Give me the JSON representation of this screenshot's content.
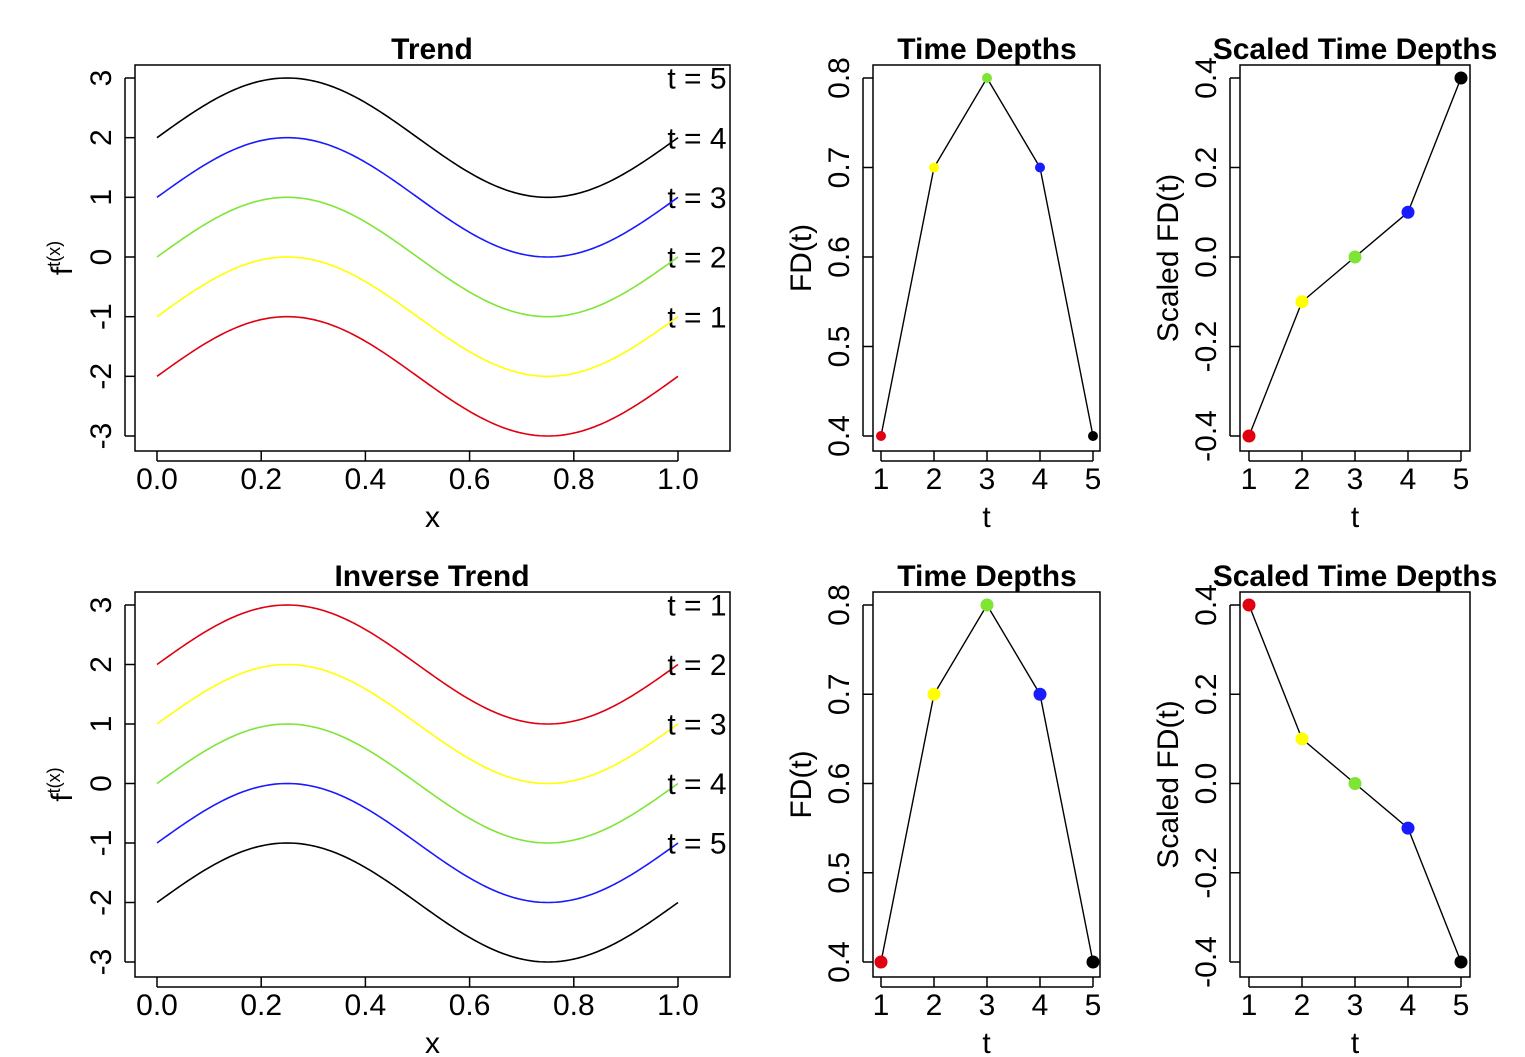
{
  "colors": {
    "red": "#e0000f",
    "yellow": "#ffff00",
    "green": "#7fe534",
    "blue": "#1a1aff",
    "black": "#000000"
  },
  "chart_data": [
    {
      "type": "line",
      "title": "Trend",
      "xlabel": "x",
      "ylabel": "f_t(x)",
      "xlim": [
        0,
        1
      ],
      "ylim": [
        -3,
        3
      ],
      "xticks": [
        "0.0",
        "0.2",
        "0.4",
        "0.6",
        "0.8",
        "1.0"
      ],
      "yticks": [
        "-3",
        "-2",
        "-1",
        "0",
        "1",
        "2",
        "3"
      ],
      "function": "t - 3 + sin(2*pi*x)",
      "series": [
        {
          "name": "t = 1",
          "t": 1,
          "offset": -2,
          "color": "red"
        },
        {
          "name": "t = 2",
          "t": 2,
          "offset": -1,
          "color": "yellow"
        },
        {
          "name": "t = 3",
          "t": 3,
          "offset": 0,
          "color": "green"
        },
        {
          "name": "t = 4",
          "t": 4,
          "offset": 1,
          "color": "blue"
        },
        {
          "name": "t = 5",
          "t": 5,
          "offset": 2,
          "color": "black"
        }
      ]
    },
    {
      "type": "line",
      "title": "Time Depths",
      "xlabel": "t",
      "ylabel": "FD(t)",
      "xlim": [
        1,
        5
      ],
      "ylim": [
        0.4,
        0.8
      ],
      "xticks": [
        "1",
        "2",
        "3",
        "4",
        "5"
      ],
      "yticks": [
        "0.4",
        "0.5",
        "0.6",
        "0.7",
        "0.8"
      ],
      "x": [
        1,
        2,
        3,
        4,
        5
      ],
      "values": [
        0.4,
        0.7,
        0.8,
        0.7,
        0.4
      ],
      "point_colors": [
        "red",
        "yellow",
        "green",
        "blue",
        "black"
      ],
      "point_size": "small"
    },
    {
      "type": "line",
      "title": "Scaled Time Depths",
      "xlabel": "t",
      "ylabel": "Scaled FD(t)",
      "xlim": [
        1,
        5
      ],
      "ylim": [
        -0.4,
        0.4
      ],
      "xticks": [
        "1",
        "2",
        "3",
        "4",
        "5"
      ],
      "yticks": [
        "-0.4",
        "-0.2",
        "0.0",
        "0.2",
        "0.4"
      ],
      "x": [
        1,
        2,
        3,
        4,
        5
      ],
      "values": [
        -0.4,
        -0.1,
        0.0,
        0.1,
        0.4
      ],
      "point_colors": [
        "red",
        "yellow",
        "green",
        "blue",
        "black"
      ],
      "point_size": "large"
    },
    {
      "type": "line",
      "title": "Inverse Trend",
      "xlabel": "x",
      "ylabel": "f_t(x)",
      "xlim": [
        0,
        1
      ],
      "ylim": [
        -3,
        3
      ],
      "xticks": [
        "0.0",
        "0.2",
        "0.4",
        "0.6",
        "0.8",
        "1.0"
      ],
      "yticks": [
        "-3",
        "-2",
        "-1",
        "0",
        "1",
        "2",
        "3"
      ],
      "function": "3 - t + sin(2*pi*x)",
      "series": [
        {
          "name": "t = 1",
          "t": 1,
          "offset": 2,
          "color": "red"
        },
        {
          "name": "t = 2",
          "t": 2,
          "offset": 1,
          "color": "yellow"
        },
        {
          "name": "t = 3",
          "t": 3,
          "offset": 0,
          "color": "green"
        },
        {
          "name": "t = 4",
          "t": 4,
          "offset": -1,
          "color": "blue"
        },
        {
          "name": "t = 5",
          "t": 5,
          "offset": -2,
          "color": "black"
        }
      ]
    },
    {
      "type": "line",
      "title": "Time Depths",
      "xlabel": "t",
      "ylabel": "FD(t)",
      "xlim": [
        1,
        5
      ],
      "ylim": [
        0.4,
        0.8
      ],
      "xticks": [
        "1",
        "2",
        "3",
        "4",
        "5"
      ],
      "yticks": [
        "0.4",
        "0.5",
        "0.6",
        "0.7",
        "0.8"
      ],
      "x": [
        1,
        2,
        3,
        4,
        5
      ],
      "values": [
        0.4,
        0.7,
        0.8,
        0.7,
        0.4
      ],
      "point_colors": [
        "red",
        "yellow",
        "green",
        "blue",
        "black"
      ],
      "point_size": "large"
    },
    {
      "type": "line",
      "title": "Scaled Time Depths",
      "xlabel": "t",
      "ylabel": "Scaled FD(t)",
      "xlim": [
        1,
        5
      ],
      "ylim": [
        -0.4,
        0.4
      ],
      "xticks": [
        "1",
        "2",
        "3",
        "4",
        "5"
      ],
      "yticks": [
        "-0.4",
        "-0.2",
        "0.0",
        "0.2",
        "0.4"
      ],
      "x": [
        1,
        2,
        3,
        4,
        5
      ],
      "values": [
        0.4,
        0.1,
        0.0,
        -0.1,
        -0.4
      ],
      "point_colors": [
        "red",
        "yellow",
        "green",
        "blue",
        "black"
      ],
      "point_size": "large"
    }
  ]
}
